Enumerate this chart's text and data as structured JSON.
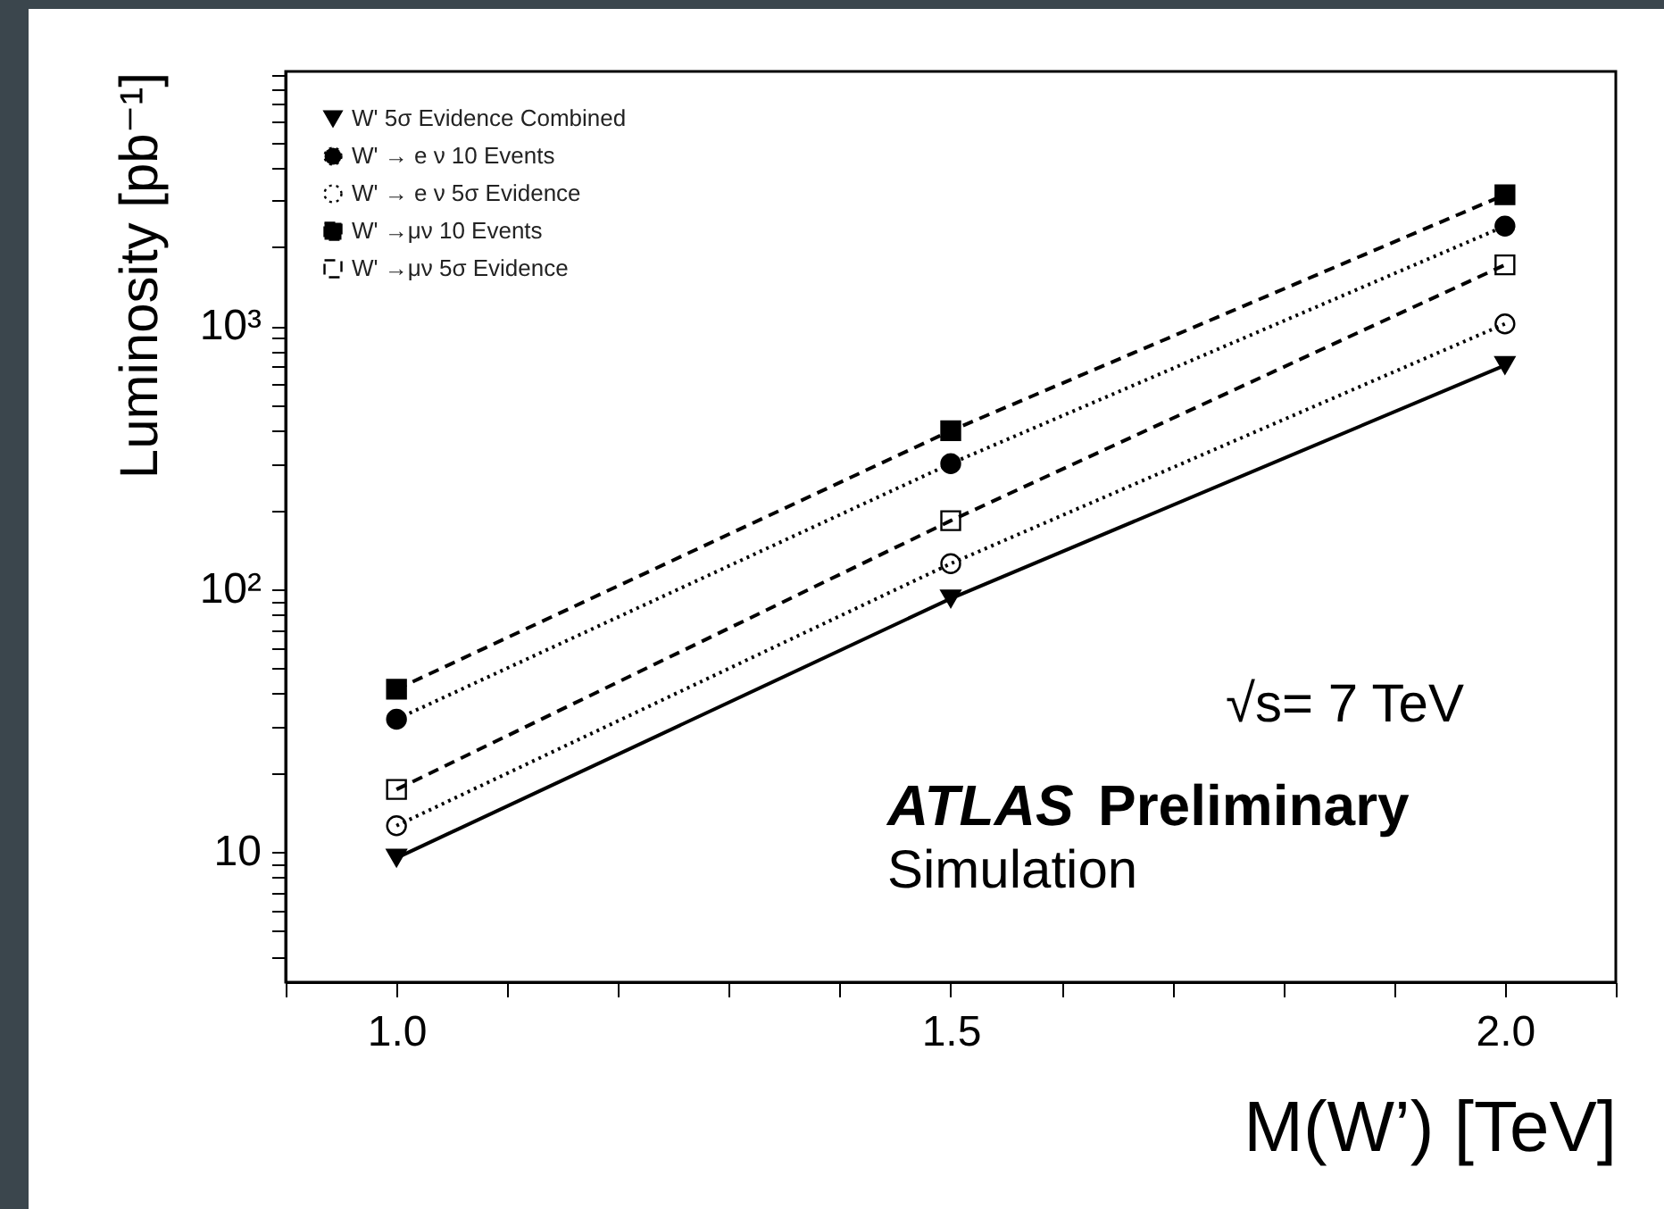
{
  "chart_data": {
    "type": "line",
    "xlabel": "M(W’) [TeV]",
    "ylabel": "Luminosity [pb⁻¹]",
    "x": [
      1.0,
      1.5,
      2.0
    ],
    "series": [
      {
        "name": "W' 5σ Evidence Combined",
        "color": "#000000",
        "marker": "triangle-down",
        "line_style": "solid",
        "values": [
          9.5,
          92,
          710
        ]
      },
      {
        "name": "W' → e ν 10 Events",
        "color": "#000000",
        "marker": "circle",
        "line_style": "dotted",
        "values": [
          32,
          300,
          2400
        ]
      },
      {
        "name": "W' → e ν 5σ Evidence",
        "color": "#000000",
        "marker": "circle-open",
        "line_style": "dotted",
        "values": [
          12.6,
          125,
          1020
        ]
      },
      {
        "name": "W' →μν  10 Events",
        "color": "#000000",
        "marker": "square",
        "line_style": "dashed",
        "values": [
          41.6,
          400,
          3160
        ]
      },
      {
        "name": "W' →μν  5σ Evidence",
        "color": "#000000",
        "marker": "square-open",
        "line_style": "dashed",
        "values": [
          17.3,
          182,
          1710
        ]
      }
    ],
    "log": "y",
    "xlim": [
      0.9,
      2.1
    ],
    "ylim": [
      3.2,
      9300
    ],
    "xticks": [
      {
        "value": 0.9,
        "label": null
      },
      {
        "value": 1.0,
        "label": "1.0"
      },
      {
        "value": 1.1,
        "label": null
      },
      {
        "value": 1.2,
        "label": null
      },
      {
        "value": 1.3,
        "label": null
      },
      {
        "value": 1.4,
        "label": null
      },
      {
        "value": 1.5,
        "label": "1.5"
      },
      {
        "value": 1.6,
        "label": null
      },
      {
        "value": 1.7,
        "label": null
      },
      {
        "value": 1.8,
        "label": null
      },
      {
        "value": 1.9,
        "label": null
      },
      {
        "value": 2.0,
        "label": "2.0"
      },
      {
        "value": 2.1,
        "label": null
      }
    ],
    "yticks": [
      {
        "value": 4,
        "label": null
      },
      {
        "value": 5,
        "label": null
      },
      {
        "value": 6,
        "label": null
      },
      {
        "value": 7,
        "label": null
      },
      {
        "value": 8,
        "label": null
      },
      {
        "value": 9,
        "label": null
      },
      10,
      {
        "value": 20,
        "label": null
      },
      {
        "value": 30,
        "label": null
      },
      {
        "value": 40,
        "label": null
      },
      {
        "value": 50,
        "label": null
      },
      {
        "value": 60,
        "label": null
      },
      {
        "value": 70,
        "label": null
      },
      {
        "value": 80,
        "label": null
      },
      {
        "value": 90,
        "label": null
      },
      {
        "value": 100,
        "label": "10²"
      },
      {
        "value": 200,
        "label": null
      },
      {
        "value": 300,
        "label": null
      },
      {
        "value": 400,
        "label": null
      },
      {
        "value": 500,
        "label": null
      },
      {
        "value": 600,
        "label": null
      },
      {
        "value": 700,
        "label": null
      },
      {
        "value": 800,
        "label": null
      },
      {
        "value": 900,
        "label": null
      },
      {
        "value": 1000,
        "label": "10³"
      },
      {
        "value": 2000,
        "label": null
      },
      {
        "value": 3000,
        "label": null
      },
      {
        "value": 4000,
        "label": null
      },
      {
        "value": 5000,
        "label": null
      },
      {
        "value": 6000,
        "label": null
      },
      {
        "value": 7000,
        "label": null
      },
      {
        "value": 8000,
        "label": null
      },
      {
        "value": 9000,
        "label": null
      }
    ],
    "grid": false,
    "legend": "top left",
    "annotations": [
      "√s= 7 TeV",
      "ATLAS Preliminary",
      "Simulation"
    ]
  }
}
